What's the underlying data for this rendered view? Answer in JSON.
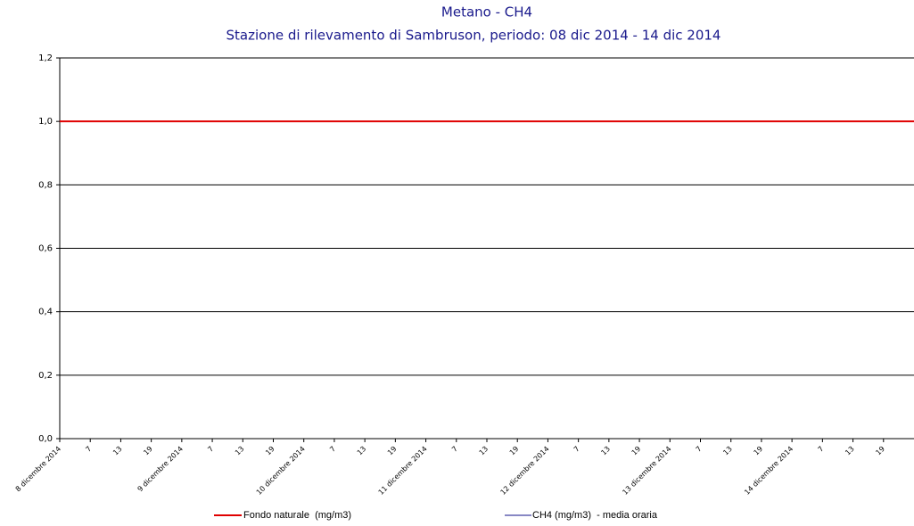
{
  "chart_data": {
    "type": "line",
    "title": "Metano - CH4",
    "subtitle": "Stazione di rilevamento di Sambruson, periodo: 08 dic 2014 - 14 dic 2014",
    "categories": [
      "8 dicembre 2014",
      "7",
      "13",
      "19",
      "9 dicembre 2014",
      "7",
      "13",
      "19",
      "10 dicembre 2014",
      "7",
      "13",
      "19",
      "11 dicembre 2014",
      "7",
      "13",
      "19",
      "12 dicembre 2014",
      "7",
      "13",
      "19",
      "13 dicembre 2014",
      "7",
      "13",
      "19",
      "14 dicembre 2014",
      "7",
      "13",
      "19"
    ],
    "threshold": {
      "name": "Fondo naturale  (mg/m3)",
      "color": "#e00000",
      "value": 1.0
    },
    "series": [
      {
        "name": "CH4 (mg/m3)  - media oraria",
        "color": "#6060b0",
        "values": [
          null,
          null,
          null,
          null,
          null,
          null,
          null,
          null,
          null,
          null,
          null,
          null,
          null,
          null,
          null,
          null,
          null,
          null,
          null,
          null,
          null,
          null,
          null,
          null,
          null,
          null,
          null,
          null
        ]
      }
    ],
    "ylim": [
      0,
      1.2
    ],
    "yticks": [
      {
        "value": 0,
        "label": "0,0"
      },
      {
        "value": 0.2,
        "label": "0,2"
      },
      {
        "value": 0.4,
        "label": "0,4"
      },
      {
        "value": 0.6,
        "label": "0,6"
      },
      {
        "value": 0.8,
        "label": "0,8"
      },
      {
        "value": 1.0,
        "label": "1,0"
      },
      {
        "value": 1.2,
        "label": "1,2"
      }
    ],
    "grid": true
  }
}
